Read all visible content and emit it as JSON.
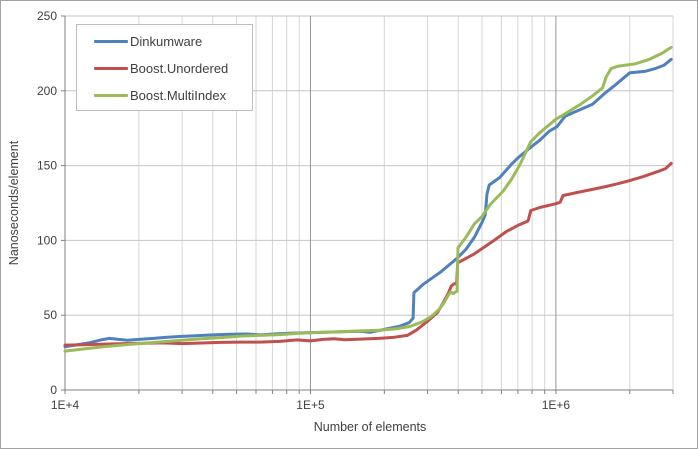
{
  "chart_data": {
    "type": "line",
    "title": "",
    "xlabel": "Number of elements",
    "ylabel": "Nanoseconds/element",
    "x_scale": "log",
    "xlim": [
      10000,
      3000000
    ],
    "ylim": [
      0,
      250
    ],
    "x_ticks": [
      {
        "value": 10000,
        "label": "1E+4"
      },
      {
        "value": 100000,
        "label": "1E+5"
      },
      {
        "value": 1000000,
        "label": "1E+6"
      }
    ],
    "y_ticks": [
      0,
      50,
      100,
      150,
      200,
      250
    ],
    "grid": {
      "horizontal": true,
      "vertical_minor_log": true,
      "vertical_major": true
    },
    "legend_position": "top-left-inside",
    "series": [
      {
        "name": "Dinkumware",
        "color": "#4F81BD",
        "points": [
          [
            10000,
            29
          ],
          [
            11000,
            30
          ],
          [
            12500,
            31.5
          ],
          [
            14000,
            33.5
          ],
          [
            15200,
            34.5
          ],
          [
            16500,
            33.8
          ],
          [
            18000,
            33.3
          ],
          [
            20000,
            33.8
          ],
          [
            23000,
            34.5
          ],
          [
            26000,
            35.2
          ],
          [
            30000,
            35.8
          ],
          [
            34000,
            36.3
          ],
          [
            40000,
            36.8
          ],
          [
            47000,
            37.2
          ],
          [
            55000,
            37.4
          ],
          [
            63000,
            36.8
          ],
          [
            72000,
            37.5
          ],
          [
            82000,
            38
          ],
          [
            95000,
            38.3
          ],
          [
            115000,
            38.6
          ],
          [
            135000,
            39
          ],
          [
            160000,
            39.3
          ],
          [
            175000,
            38.6
          ],
          [
            200000,
            40.5
          ],
          [
            230000,
            42.5
          ],
          [
            252000,
            45
          ],
          [
            262000,
            48
          ],
          [
            264000,
            65
          ],
          [
            290000,
            71
          ],
          [
            340000,
            79
          ],
          [
            395000,
            88
          ],
          [
            430000,
            94
          ],
          [
            465000,
            102
          ],
          [
            500000,
            112
          ],
          [
            515000,
            117
          ],
          [
            524000,
            131
          ],
          [
            535000,
            137
          ],
          [
            590000,
            142
          ],
          [
            660000,
            151
          ],
          [
            710000,
            156
          ],
          [
            800000,
            163
          ],
          [
            860000,
            167
          ],
          [
            940000,
            173
          ],
          [
            1010000,
            176
          ],
          [
            1090000,
            183
          ],
          [
            1200000,
            186
          ],
          [
            1410000,
            191
          ],
          [
            1600000,
            199
          ],
          [
            1750000,
            204
          ],
          [
            1870000,
            208
          ],
          [
            2000000,
            212
          ],
          [
            2300000,
            213
          ],
          [
            2550000,
            215
          ],
          [
            2750000,
            217
          ],
          [
            2950000,
            221
          ]
        ]
      },
      {
        "name": "Boost.Unordered",
        "color": "#C0504D",
        "points": [
          [
            10000,
            30
          ],
          [
            12000,
            30.3
          ],
          [
            14500,
            30.7
          ],
          [
            17500,
            31
          ],
          [
            21000,
            31.2
          ],
          [
            25000,
            31.5
          ],
          [
            30000,
            31
          ],
          [
            36000,
            31.4
          ],
          [
            43000,
            31.8
          ],
          [
            52000,
            32
          ],
          [
            62000,
            32
          ],
          [
            75000,
            32.5
          ],
          [
            88000,
            33.5
          ],
          [
            100000,
            32.8
          ],
          [
            113000,
            33.8
          ],
          [
            125000,
            34.2
          ],
          [
            138000,
            33.6
          ],
          [
            160000,
            34
          ],
          [
            190000,
            34.5
          ],
          [
            220000,
            35.3
          ],
          [
            248000,
            36.5
          ],
          [
            270000,
            40
          ],
          [
            300000,
            46
          ],
          [
            330000,
            52
          ],
          [
            352000,
            60
          ],
          [
            365000,
            65
          ],
          [
            375000,
            69.5
          ],
          [
            385000,
            71
          ],
          [
            394000,
            71
          ],
          [
            398000,
            85
          ],
          [
            430000,
            88
          ],
          [
            465000,
            91
          ],
          [
            505000,
            95
          ],
          [
            560000,
            100
          ],
          [
            630000,
            106
          ],
          [
            700000,
            110
          ],
          [
            770000,
            113
          ],
          [
            790000,
            120
          ],
          [
            860000,
            122
          ],
          [
            1000000,
            124.5
          ],
          [
            1040000,
            125.5
          ],
          [
            1070000,
            130
          ],
          [
            1220000,
            132
          ],
          [
            1400000,
            134
          ],
          [
            1600000,
            136
          ],
          [
            1800000,
            138
          ],
          [
            2000000,
            140
          ],
          [
            2300000,
            143
          ],
          [
            2600000,
            146
          ],
          [
            2800000,
            148
          ],
          [
            2950000,
            151.5
          ]
        ]
      },
      {
        "name": "Boost.MultiIndex",
        "color": "#9BBB59",
        "points": [
          [
            10000,
            26
          ],
          [
            12000,
            27.5
          ],
          [
            14500,
            29
          ],
          [
            17500,
            30.3
          ],
          [
            21000,
            31.3
          ],
          [
            25000,
            32.3
          ],
          [
            30000,
            33.3
          ],
          [
            36000,
            34.2
          ],
          [
            43000,
            35
          ],
          [
            52000,
            36
          ],
          [
            62000,
            36.5
          ],
          [
            75000,
            37
          ],
          [
            90000,
            38
          ],
          [
            110000,
            38.5
          ],
          [
            130000,
            39
          ],
          [
            160000,
            39.5
          ],
          [
            190000,
            40
          ],
          [
            225000,
            41
          ],
          [
            255000,
            42.5
          ],
          [
            285000,
            45.5
          ],
          [
            310000,
            49
          ],
          [
            335000,
            54
          ],
          [
            352000,
            59
          ],
          [
            363000,
            63
          ],
          [
            372000,
            65.5
          ],
          [
            382000,
            64.5
          ],
          [
            390000,
            65.5
          ],
          [
            396000,
            66
          ],
          [
            399000,
            95
          ],
          [
            430000,
            102
          ],
          [
            465000,
            111
          ],
          [
            500000,
            116
          ],
          [
            540000,
            124
          ],
          [
            610000,
            133
          ],
          [
            660000,
            141
          ],
          [
            710000,
            150
          ],
          [
            750000,
            158
          ],
          [
            790000,
            166
          ],
          [
            860000,
            172
          ],
          [
            1000000,
            181
          ],
          [
            1100000,
            185
          ],
          [
            1260000,
            191
          ],
          [
            1420000,
            197
          ],
          [
            1550000,
            202
          ],
          [
            1600000,
            209
          ],
          [
            1680000,
            215
          ],
          [
            1800000,
            216.5
          ],
          [
            2100000,
            218
          ],
          [
            2400000,
            221
          ],
          [
            2700000,
            225
          ],
          [
            2950000,
            229
          ]
        ]
      }
    ]
  },
  "colors": {
    "axis": "#808080",
    "grid_minor": "#D6D6D6",
    "grid_major": "#969696",
    "grid_horizontal": "#C6C6C6",
    "text": "#404040",
    "background": "#FFFFFF",
    "frame": "#A3A3A3"
  }
}
